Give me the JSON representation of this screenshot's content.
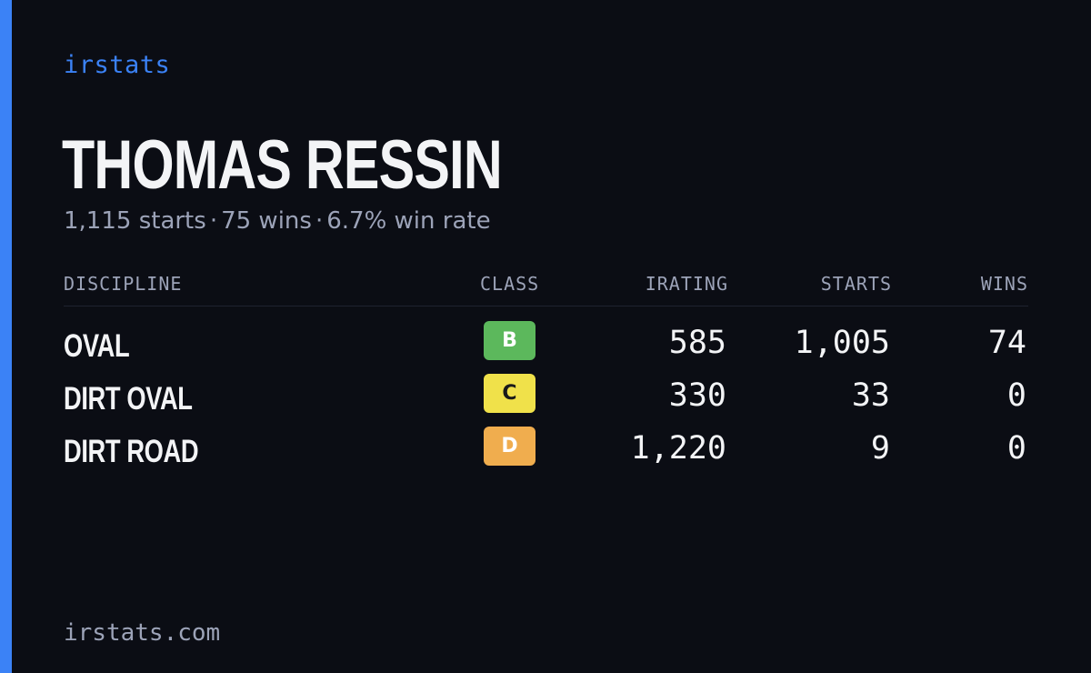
{
  "brand": "irstats",
  "driver": {
    "name": "THOMAS RESSIN",
    "starts": "1,115 starts",
    "wins": "75 wins",
    "win_rate": "6.7% win rate",
    "separator": "·"
  },
  "table": {
    "headers": {
      "discipline": "DISCIPLINE",
      "class": "CLASS",
      "irating": "IRATING",
      "starts": "STARTS",
      "wins": "WINS"
    },
    "rows": [
      {
        "discipline": "OVAL",
        "class": "B",
        "irating": "585",
        "starts": "1,005",
        "wins": "74"
      },
      {
        "discipline": "DIRT OVAL",
        "class": "C",
        "irating": "330",
        "starts": "33",
        "wins": "0"
      },
      {
        "discipline": "DIRT ROAD",
        "class": "D",
        "irating": "1,220",
        "starts": "9",
        "wins": "0"
      }
    ]
  },
  "class_colors": {
    "B": {
      "bg": "#5cb85c",
      "fg": "#ffffff"
    },
    "C": {
      "bg": "#f0e14a",
      "fg": "#1a1a1a"
    },
    "D": {
      "bg": "#f0ad4e",
      "fg": "#ffffff"
    }
  },
  "colors": {
    "accent": "#3b82f6",
    "background": "#0b0d14"
  },
  "footer": "irstats.com"
}
